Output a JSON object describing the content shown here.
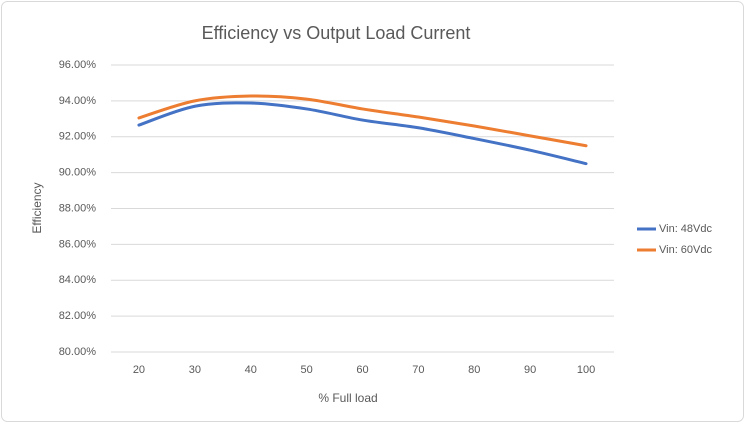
{
  "chart_data": {
    "type": "line",
    "title": "Efficiency vs Output Load Current",
    "x_label": "%  Full load",
    "y_label": "Efficiency",
    "categories": [
      "20",
      "30",
      "40",
      "50",
      "60",
      "70",
      "80",
      "90",
      "100"
    ],
    "series": [
      {
        "name": "Vin: 48Vdc",
        "color": "#4472c4",
        "values": [
          92.65,
          93.7,
          93.88,
          93.55,
          92.93,
          92.5,
          91.9,
          91.25,
          90.5
        ]
      },
      {
        "name": "Vin: 60Vdc",
        "color": "#ed7d31",
        "values": [
          93.05,
          94.0,
          94.27,
          94.1,
          93.55,
          93.1,
          92.6,
          92.05,
          91.5
        ]
      }
    ],
    "ylim": [
      80,
      96
    ],
    "yticks": [
      {
        "value": 80,
        "label": "80.00%"
      },
      {
        "value": 82,
        "label": "82.00%"
      },
      {
        "value": 84,
        "label": "84.00%"
      },
      {
        "value": 86,
        "label": "86.00%"
      },
      {
        "value": 88,
        "label": "88.00%"
      },
      {
        "value": 90,
        "label": "90.00%"
      },
      {
        "value": 92,
        "label": "92.00%"
      },
      {
        "value": 94,
        "label": "94.00%"
      },
      {
        "value": 96,
        "label": "96.00%"
      }
    ],
    "grid": true,
    "smooth": true,
    "legend": "right"
  }
}
